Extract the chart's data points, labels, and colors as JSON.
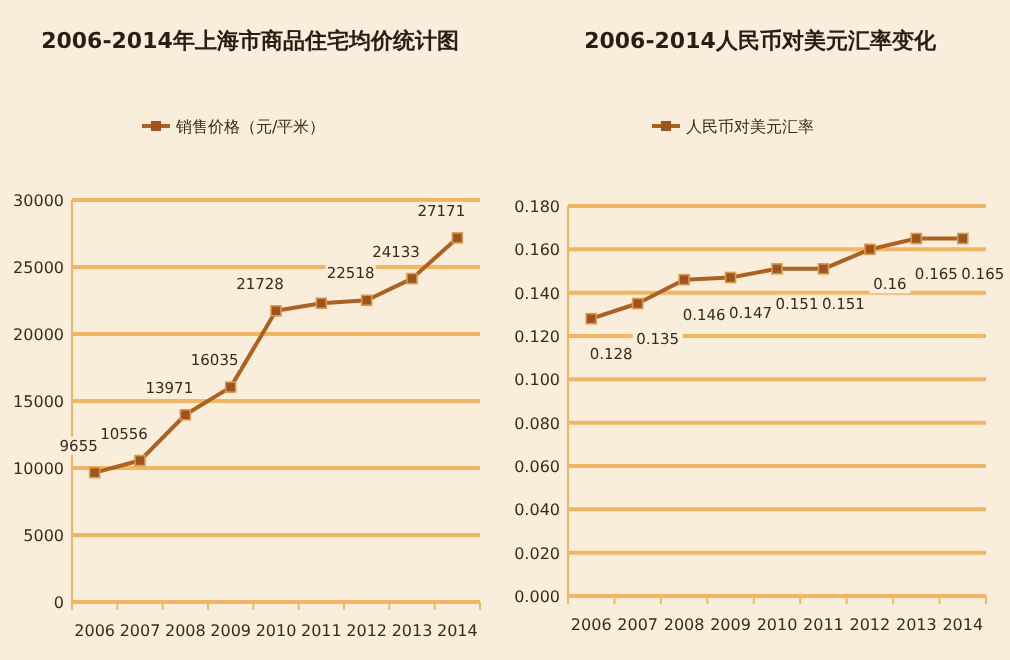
{
  "chart_data": [
    {
      "type": "line",
      "title": "2006-2014年上海市商品住宅均价统计图",
      "categories": [
        "2006",
        "2007",
        "2008",
        "2009",
        "2010",
        "2011",
        "2012",
        "2013",
        "2014"
      ],
      "series": [
        {
          "name": "销售价格（元/平米）",
          "color": "#b0601e",
          "values": [
            9655,
            10556,
            13971,
            16035,
            21728,
            22300,
            22518,
            24133,
            27171
          ],
          "value_labels": [
            "9655",
            "10556",
            "13971",
            "16035",
            "21728",
            null,
            "22518",
            "24133",
            "27171"
          ]
        }
      ],
      "ylim": [
        0,
        30000
      ],
      "yticks": [
        0,
        5000,
        10000,
        15000,
        20000,
        25000,
        30000
      ],
      "grid": "y",
      "legend": "top",
      "marker": "square"
    },
    {
      "type": "line",
      "title": "2006-2014人民币对美元汇率变化",
      "categories": [
        "2006",
        "2007",
        "2008",
        "2009",
        "2010",
        "2011",
        "2012",
        "2013",
        "2014"
      ],
      "series": [
        {
          "name": "人民币对美元汇率",
          "color": "#b0601e",
          "values": [
            0.128,
            0.135,
            0.146,
            0.147,
            0.151,
            0.151,
            0.16,
            0.165,
            0.165
          ],
          "value_labels": [
            "0.128",
            "0.135",
            "0.146",
            "0.147",
            "0.151",
            "0.151",
            "0.16",
            "0.165",
            "0.165"
          ]
        }
      ],
      "ylim": [
        0,
        0.18
      ],
      "yticks": [
        {
          "value": 0,
          "label": "0.000"
        },
        {
          "value": 0.02,
          "label": "0.020"
        },
        {
          "value": 0.04,
          "label": "0.040"
        },
        {
          "value": 0.06,
          "label": "0.060"
        },
        {
          "value": 0.08,
          "label": "0.080"
        },
        {
          "value": 0.1,
          "label": "0.100"
        },
        {
          "value": 0.12,
          "label": "0.120"
        },
        {
          "value": 0.14,
          "label": "0.140"
        },
        {
          "value": 0.16,
          "label": "0.160"
        },
        {
          "value": 0.18,
          "label": "0.180"
        }
      ],
      "grid": "y",
      "legend": "top",
      "marker": "square"
    }
  ]
}
